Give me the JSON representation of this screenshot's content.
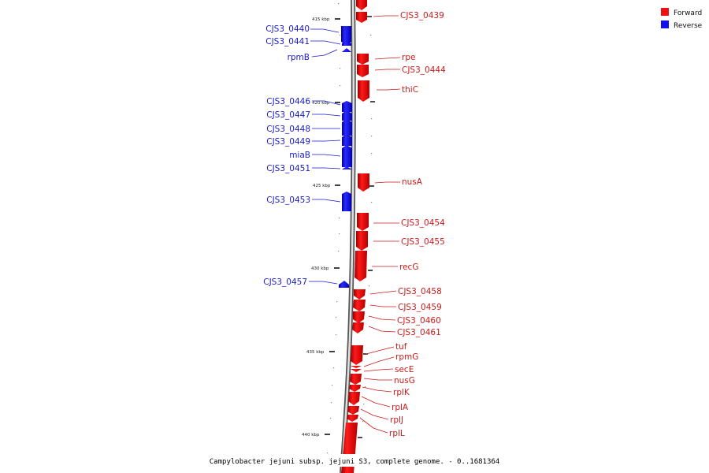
{
  "caption": "Campylobacter jejuni subsp. jejuni S3, complete genome. - 0..1681364",
  "legend": {
    "forward": {
      "label": "Forward",
      "color": "#ee1111"
    },
    "reverse": {
      "label": "Reverse",
      "color": "#1111ee"
    }
  },
  "ticks": [
    "415 kbp",
    "420 kbp",
    "425 kbp",
    "430 kbp",
    "435 kbp",
    "440 kbp"
  ],
  "genes_reverse": [
    "CJS3_0440",
    "CJS3_0441",
    "rpmB",
    "CJS3_0446",
    "CJS3_0447",
    "CJS3_0448",
    "CJS3_0449",
    "miaB",
    "CJS3_0451",
    "CJS3_0453",
    "CJS3_0457"
  ],
  "genes_forward": [
    "CJS3_0439",
    "rpe",
    "CJS3_0444",
    "thiC",
    "nusA",
    "CJS3_0454",
    "CJS3_0455",
    "recG",
    "CJS3_0458",
    "CJS3_0459",
    "CJS3_0460",
    "CJS3_0461",
    "tuf",
    "rpmG",
    "secE",
    "nusG",
    "rplK",
    "rplA",
    "rplJ",
    "rplL"
  ]
}
